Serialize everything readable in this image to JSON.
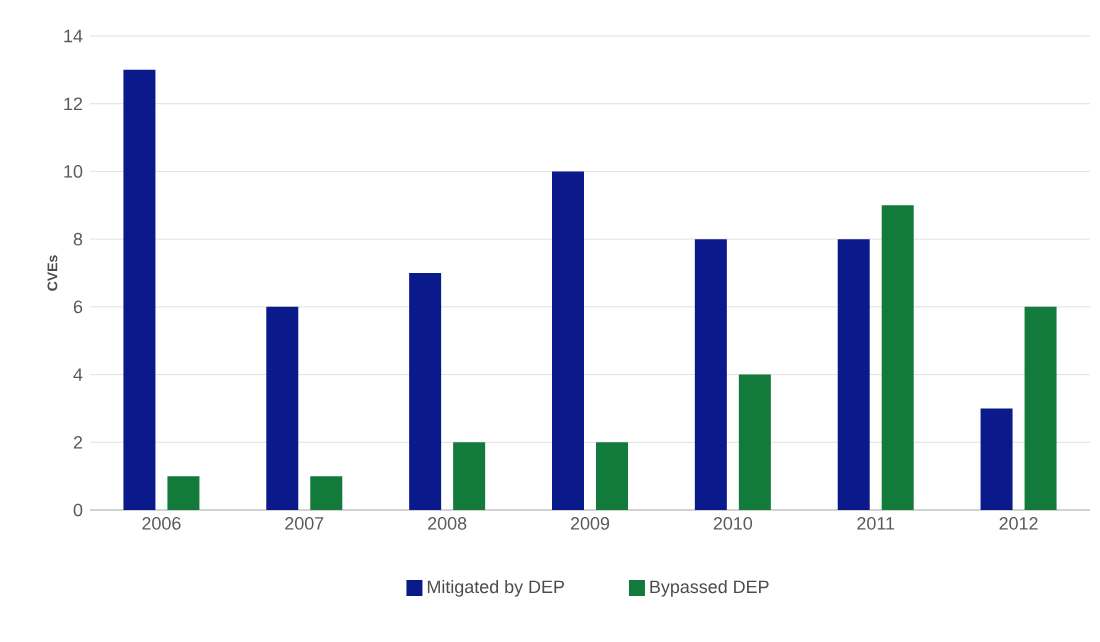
{
  "chart_data": {
    "type": "bar",
    "ylabel": "CVEs",
    "categories": [
      "2006",
      "2007",
      "2008",
      "2009",
      "2010",
      "2011",
      "2012"
    ],
    "series": [
      {
        "name": "Mitigated by DEP",
        "color": "#0a1a8a",
        "values": [
          13,
          6,
          7,
          10,
          8,
          8,
          3
        ]
      },
      {
        "name": "Bypassed DEP",
        "color": "#127a3a",
        "values": [
          1,
          1,
          2,
          2,
          4,
          9,
          6
        ]
      }
    ],
    "ylim": [
      0,
      14
    ],
    "yticks": [
      0,
      2,
      4,
      6,
      8,
      10,
      12,
      14
    ],
    "grid": "y",
    "legend": "bottom"
  }
}
